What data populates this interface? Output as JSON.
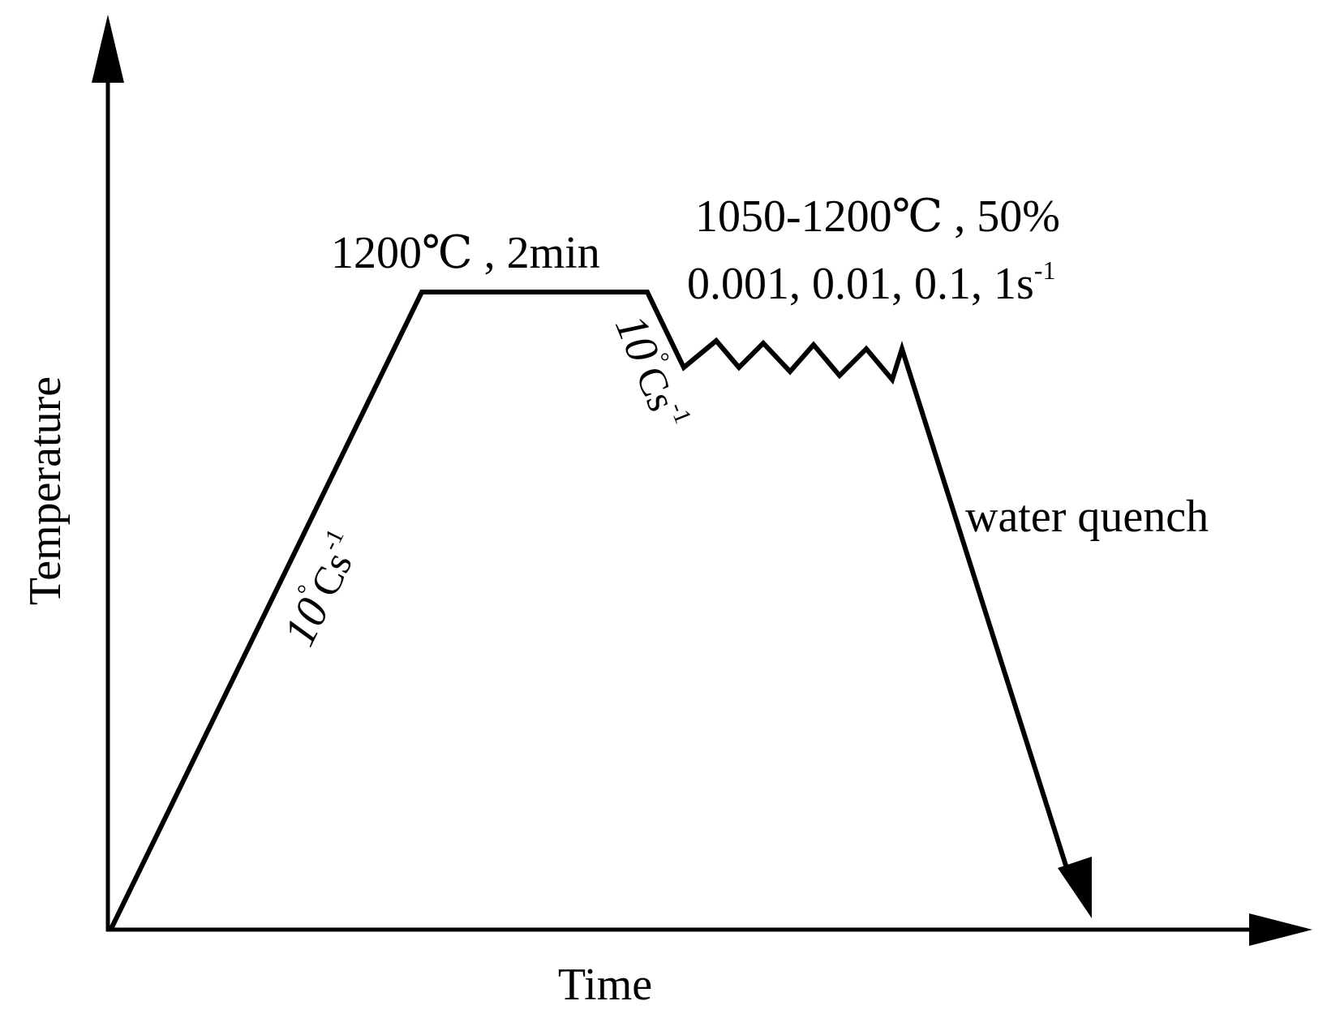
{
  "axes": {
    "x_label": "Time",
    "y_label": "Temperature"
  },
  "annotations": {
    "soak": "1200℃ , 2min",
    "deform_temp": "1050-1200℃ , 50%",
    "strain_rates_text": "0.001, 0.01, 0.1, 1s",
    "strain_rates_exp": "-1",
    "heating_rate": {
      "num": "10",
      "deg": "°",
      "unit": "Cs",
      "exp": "-1"
    },
    "cooling_rate": {
      "num": "10",
      "deg": "°",
      "unit": "Cs",
      "exp": "-1"
    },
    "quench": "water quench"
  },
  "colors": {
    "line": "#000000",
    "background": "#ffffff"
  }
}
